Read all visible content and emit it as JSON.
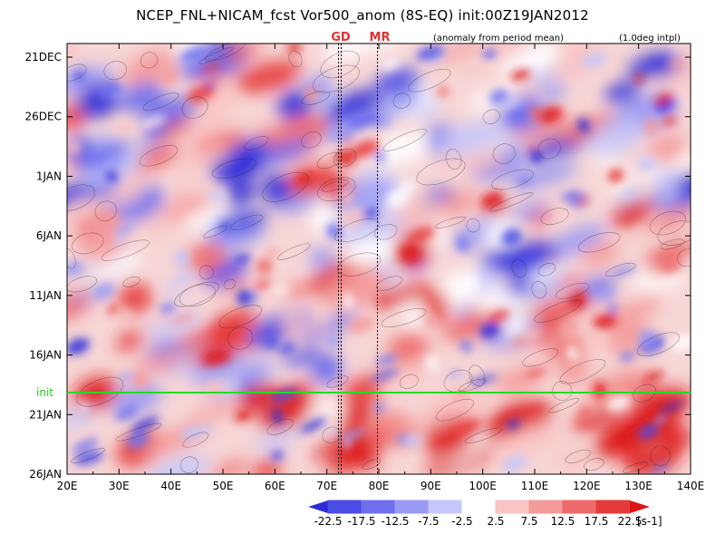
{
  "header": {
    "title": "NCEP_FNL+NICAM_fcst Vor500_anom (8S-EQ) init:00Z19JAN2012",
    "subnote": "(anomaly from period mean)",
    "interp": "(1.0deg intpl)"
  },
  "chart_data": {
    "type": "heatmap",
    "title": "NCEP_FNL+NICAM_fcst Vor500_anom (8S-EQ) init:00Z19JAN2012",
    "x_axis": {
      "ticks": [
        "20E",
        "30E",
        "40E",
        "50E",
        "60E",
        "70E",
        "80E",
        "90E",
        "100E",
        "110E",
        "120E",
        "130E",
        "140E"
      ],
      "range": [
        20,
        140
      ]
    },
    "y_axis": {
      "ticks": [
        "21DEC",
        "26DEC",
        "1JAN",
        "6JAN",
        "11JAN",
        "16JAN",
        "21JAN",
        "26JAN"
      ],
      "range_days": [
        0,
        36
      ]
    },
    "markers": [
      {
        "label": "GD",
        "lon": 72.5
      },
      {
        "label": "MR",
        "lon": 80
      }
    ],
    "init_line": {
      "label": "init",
      "day": 29
    },
    "colorbar": {
      "levels": [
        "-22.5",
        "-17.5",
        "-12.5",
        "-7.5",
        "-2.5",
        "2.5",
        "7.5",
        "12.5",
        "17.5",
        "22.5"
      ],
      "unit": "[s-1]",
      "colors": [
        "#2b2bd8",
        "#4b4be6",
        "#6f6fee",
        "#9a9af4",
        "#c6c6fa",
        "#ffffff",
        "#f9c4c4",
        "#f49a9a",
        "#ee6a6a",
        "#e63a3a",
        "#dd1414"
      ]
    }
  }
}
